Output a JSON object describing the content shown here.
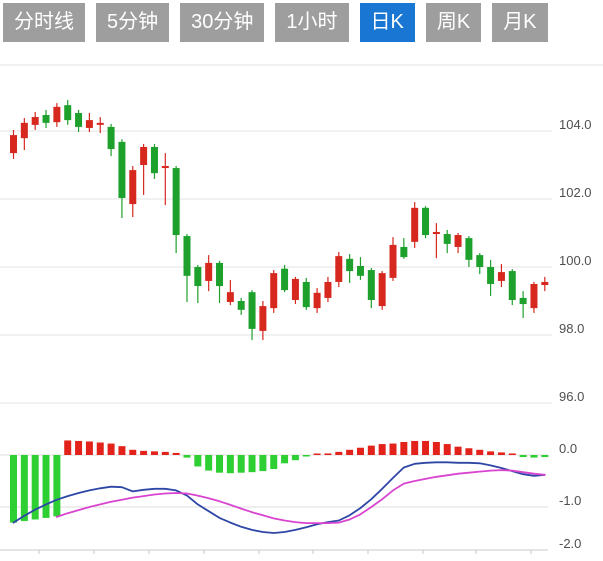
{
  "toolbar": {
    "active_index": 4,
    "buttons": [
      {
        "label": "分时线"
      },
      {
        "label": "5分钟"
      },
      {
        "label": "30分钟"
      },
      {
        "label": "1小时"
      },
      {
        "label": "日K"
      },
      {
        "label": "周K"
      },
      {
        "label": "月K"
      }
    ]
  },
  "colors": {
    "tab_bg": "#9e9e9e",
    "tab_active_bg": "#1976d2",
    "tab_text": "#ffffff",
    "candle_up": "#d6281e",
    "candle_down": "#1ea12c",
    "hist_up": "#e3231b",
    "hist_down": "#2ecf33",
    "dif_line": "#2e46a5",
    "dea_line": "#d944d0",
    "grid": "#e3e3e3",
    "axis_line": "#c9c9c9",
    "axis_text": "#4f4f4f"
  },
  "chart_data": {
    "type": "candlestick+macd_histogram",
    "title": "",
    "price_panel": {
      "ylim": [
        95.5,
        106.0
      ],
      "grid": true,
      "yticks": [
        {
          "label": "104.0",
          "value": 104.0
        },
        {
          "label": "102.0",
          "value": 102.0
        },
        {
          "label": "100.0",
          "value": 100.0
        },
        {
          "label": "98.0",
          "value": 98.0
        },
        {
          "label": "96.0",
          "value": 96.0
        }
      ],
      "candles_ohlc": [
        [
          103.35,
          104.03,
          103.18,
          103.88
        ],
        [
          103.79,
          104.38,
          103.44,
          104.24
        ],
        [
          104.18,
          104.56,
          104.03,
          104.41
        ],
        [
          104.47,
          104.62,
          104.09,
          104.24
        ],
        [
          104.26,
          104.82,
          104.12,
          104.71
        ],
        [
          104.76,
          104.91,
          104.18,
          104.32
        ],
        [
          104.53,
          104.62,
          103.97,
          104.12
        ],
        [
          104.09,
          104.53,
          103.97,
          104.32
        ],
        [
          104.18,
          104.41,
          103.94,
          104.24
        ],
        [
          104.12,
          104.21,
          103.26,
          103.47
        ],
        [
          103.68,
          103.76,
          101.44,
          102.03
        ],
        [
          101.85,
          102.97,
          101.47,
          102.85
        ],
        [
          103.0,
          103.62,
          102.12,
          103.53
        ],
        [
          103.53,
          103.62,
          102.59,
          102.76
        ],
        [
          102.91,
          103.35,
          101.82,
          102.97
        ],
        [
          102.91,
          102.97,
          100.41,
          100.94
        ],
        [
          100.91,
          100.97,
          98.97,
          99.74
        ],
        [
          100.0,
          100.06,
          98.94,
          99.44
        ],
        [
          99.59,
          100.35,
          99.29,
          100.12
        ],
        [
          100.12,
          100.18,
          98.94,
          99.44
        ],
        [
          98.97,
          99.62,
          98.88,
          99.26
        ],
        [
          99.0,
          99.09,
          98.59,
          98.74
        ],
        [
          99.26,
          99.32,
          97.85,
          98.18
        ],
        [
          98.12,
          99.0,
          97.85,
          98.85
        ],
        [
          98.79,
          99.91,
          98.65,
          99.82
        ],
        [
          99.95,
          100.06,
          99.26,
          99.32
        ],
        [
          99.03,
          99.71,
          98.91,
          99.65
        ],
        [
          99.56,
          99.68,
          98.74,
          98.82
        ],
        [
          98.79,
          99.38,
          98.65,
          99.24
        ],
        [
          99.09,
          99.71,
          98.97,
          99.56
        ],
        [
          99.56,
          100.44,
          99.41,
          100.32
        ],
        [
          100.24,
          100.38,
          99.53,
          99.88
        ],
        [
          100.03,
          100.29,
          99.62,
          99.74
        ],
        [
          99.91,
          99.97,
          98.79,
          99.03
        ],
        [
          98.85,
          99.88,
          98.74,
          99.82
        ],
        [
          99.68,
          100.88,
          99.59,
          100.65
        ],
        [
          100.59,
          100.85,
          100.24,
          100.29
        ],
        [
          100.74,
          101.91,
          100.56,
          101.74
        ],
        [
          101.74,
          101.79,
          100.85,
          100.94
        ],
        [
          100.97,
          101.29,
          100.26,
          101.03
        ],
        [
          100.97,
          101.09,
          100.41,
          100.68
        ],
        [
          100.59,
          101.0,
          100.41,
          100.94
        ],
        [
          100.85,
          100.91,
          100.0,
          100.21
        ],
        [
          100.35,
          100.41,
          99.79,
          100.0
        ],
        [
          100.0,
          100.21,
          99.15,
          99.5
        ],
        [
          99.59,
          100.09,
          99.41,
          99.85
        ],
        [
          99.88,
          99.94,
          98.88,
          99.03
        ],
        [
          99.09,
          99.29,
          98.5,
          98.91
        ],
        [
          98.79,
          99.56,
          98.65,
          99.5
        ],
        [
          99.47,
          99.71,
          99.29,
          99.56
        ]
      ]
    },
    "macd_panel": {
      "ylim": [
        -2.0,
        0.5
      ],
      "yticks": [
        {
          "label": "0.0",
          "value": 0.0
        },
        {
          "label": "-1.0",
          "value": -1.0
        },
        {
          "label": "-2.0",
          "value": -2.0
        }
      ],
      "histogram": [
        -1.3,
        -1.27,
        -1.24,
        -1.21,
        -1.18,
        0.28,
        0.27,
        0.26,
        0.24,
        0.22,
        0.17,
        0.1,
        0.08,
        0.07,
        0.06,
        0.04,
        -0.05,
        -0.22,
        -0.3,
        -0.34,
        -0.35,
        -0.34,
        -0.33,
        -0.31,
        -0.27,
        -0.16,
        -0.1,
        -0.02,
        0.02,
        0.03,
        0.06,
        0.1,
        0.14,
        0.18,
        0.21,
        0.22,
        0.25,
        0.27,
        0.27,
        0.25,
        0.21,
        0.16,
        0.13,
        0.1,
        0.07,
        0.05,
        0.03,
        -0.04,
        -0.05,
        -0.04
      ],
      "dif": [
        -1.3,
        -1.17,
        -1.05,
        -0.95,
        -0.86,
        -0.79,
        -0.73,
        -0.68,
        -0.64,
        -0.61,
        -0.62,
        -0.7,
        -0.67,
        -0.65,
        -0.65,
        -0.68,
        -0.78,
        -0.95,
        -1.08,
        -1.21,
        -1.3,
        -1.38,
        -1.44,
        -1.48,
        -1.5,
        -1.48,
        -1.44,
        -1.39,
        -1.33,
        -1.29,
        -1.26,
        -1.16,
        -1.02,
        -0.85,
        -0.65,
        -0.44,
        -0.24,
        -0.17,
        -0.15,
        -0.14,
        -0.14,
        -0.15,
        -0.15,
        -0.16,
        -0.2,
        -0.25,
        -0.31,
        -0.37,
        -0.4,
        -0.38
      ],
      "dea": [
        null,
        null,
        null,
        null,
        -1.19,
        -1.12,
        -1.06,
        -1.0,
        -0.95,
        -0.9,
        -0.86,
        -0.82,
        -0.79,
        -0.76,
        -0.74,
        -0.73,
        -0.74,
        -0.78,
        -0.83,
        -0.89,
        -0.96,
        -1.03,
        -1.1,
        -1.16,
        -1.22,
        -1.26,
        -1.29,
        -1.31,
        -1.31,
        -1.31,
        -1.3,
        -1.24,
        -1.14,
        -1.0,
        -0.85,
        -0.68,
        -0.55,
        -0.5,
        -0.46,
        -0.42,
        -0.39,
        -0.36,
        -0.34,
        -0.32,
        -0.3,
        -0.29,
        -0.3,
        -0.33,
        -0.36,
        -0.38
      ]
    }
  }
}
